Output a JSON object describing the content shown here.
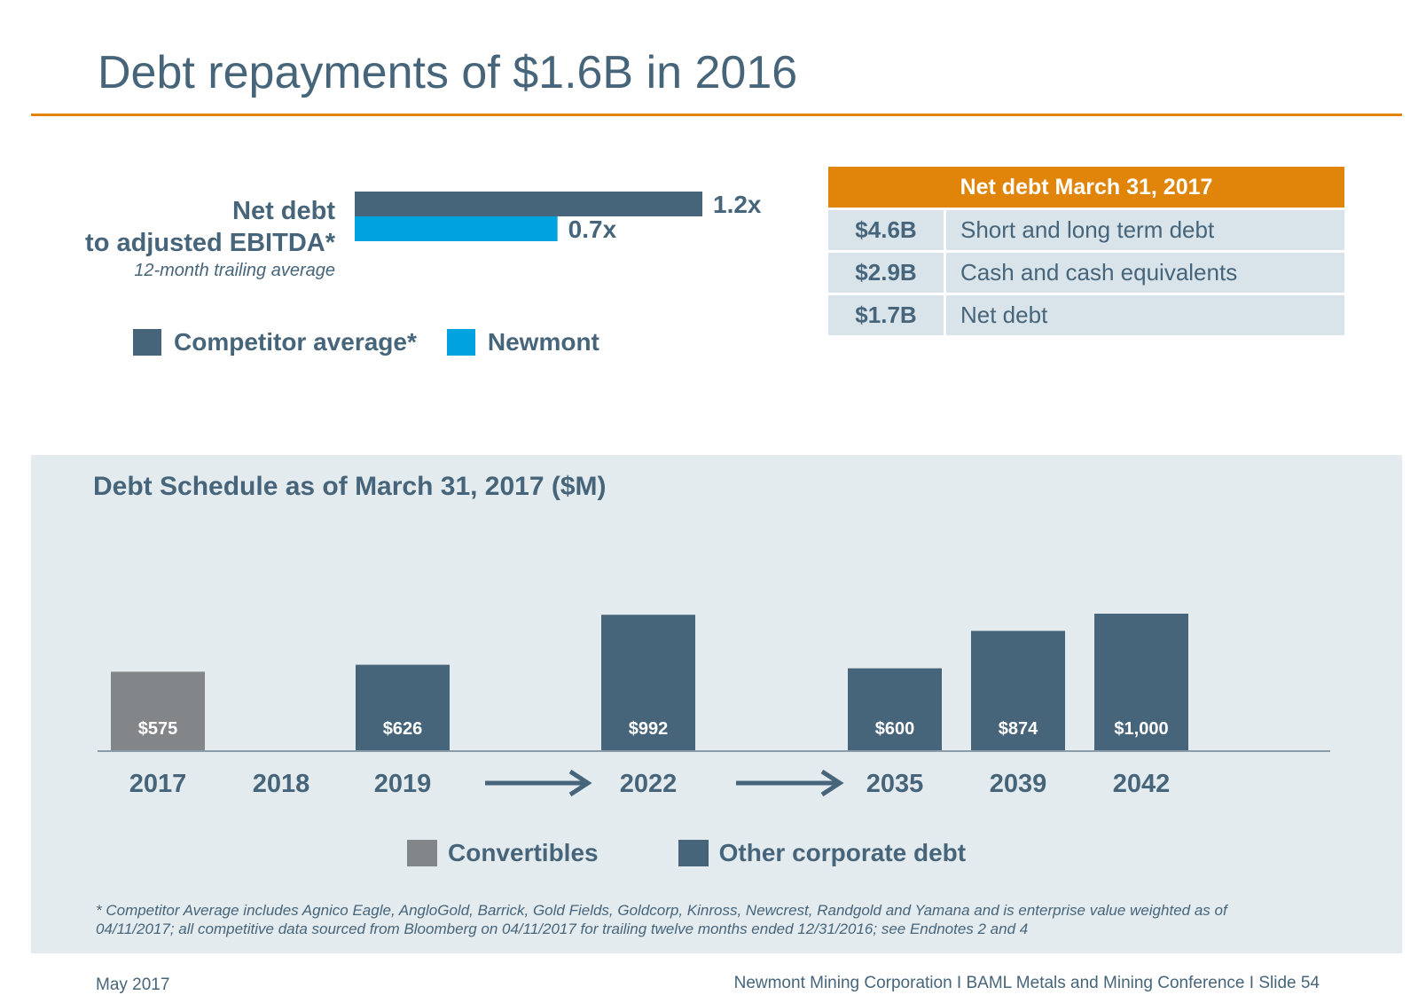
{
  "slide": {
    "title": "Debt repayments of $1.6B in 2016",
    "footer_left": "May 2017",
    "footer_right": "Newmont Mining Corporation  I  BAML Metals and Mining Conference  I  Slide 54",
    "footnote": "* Competitor Average includes Agnico Eagle, AngloGold, Barrick, Gold Fields, Goldcorp, Kinross, Newcrest, Randgold and Yamana and is enterprise value weighted as of 04/11/2017; all competitive data sourced from Bloomberg on 04/11/2017 for trailing twelve months ended 12/31/2016; see Endnotes 2 and 4"
  },
  "net_debt_table": {
    "header": "Net debt March 31, 2017",
    "rows": [
      {
        "amount": "$4.6B",
        "label": "Short and long term debt"
      },
      {
        "amount": "$2.9B",
        "label": "Cash and cash equivalents"
      },
      {
        "amount": "$1.7B",
        "label": "Net debt"
      }
    ]
  },
  "colors": {
    "competitor": "#46657a",
    "newmont": "#00a3e0",
    "convertibles": "#828689",
    "other_debt": "#46657a",
    "accent": "#e0840a"
  },
  "chart_data": [
    {
      "type": "bar",
      "orientation": "horizontal",
      "title_lines": [
        "Net debt",
        "to adjusted EBITDA*"
      ],
      "subtitle": "12-month trailing average",
      "series": [
        {
          "name": "Competitor average*",
          "value": 1.2,
          "label": "1.2x"
        },
        {
          "name": "Newmont",
          "value": 0.7,
          "label": "0.7x"
        }
      ],
      "xlim": [
        0,
        1.2
      ],
      "legend": "bottom"
    },
    {
      "type": "bar",
      "title": "Debt Schedule as of March 31, 2017 ($M)",
      "categories": [
        "2017",
        "2018",
        "2019",
        "2022",
        "2035",
        "2039",
        "2042"
      ],
      "series": [
        {
          "name": "Convertibles",
          "values": [
            575,
            null,
            null,
            null,
            null,
            null,
            null
          ]
        },
        {
          "name": "Other corporate debt",
          "values": [
            null,
            null,
            626,
            992,
            600,
            874,
            1000
          ]
        }
      ],
      "data_labels": [
        "$575",
        "",
        "$626",
        "$992",
        "$600",
        "$874",
        "$1,000"
      ],
      "ylim": [
        0,
        1000
      ],
      "legend": "bottom",
      "grid": false
    }
  ]
}
